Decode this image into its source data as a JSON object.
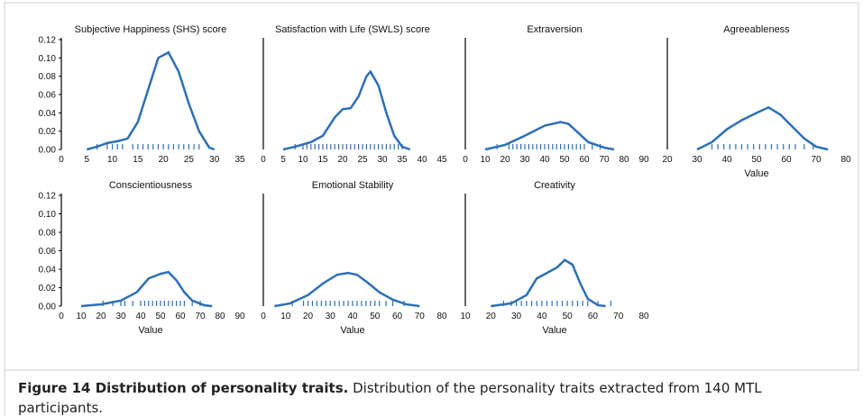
{
  "chart_data": [
    {
      "type": "line",
      "title": "Subjective Happiness (SHS) score",
      "color": "#2e6fb6",
      "x": [
        5,
        7,
        9,
        11,
        13,
        15,
        17,
        19,
        21,
        23,
        25,
        27,
        29,
        30
      ],
      "values": [
        0,
        0.003,
        0.007,
        0.009,
        0.012,
        0.03,
        0.065,
        0.1,
        0.106,
        0.085,
        0.05,
        0.02,
        0.002,
        0
      ],
      "rug": [
        7,
        9,
        10,
        11,
        12,
        14,
        15,
        16,
        17,
        18,
        19,
        20,
        21,
        22,
        23,
        24,
        25,
        26,
        27
      ],
      "xlim": [
        0,
        35
      ],
      "xticks": [
        0,
        5,
        10,
        15,
        20,
        25,
        30,
        35
      ],
      "ylim": [
        0,
        0.12
      ],
      "yticks": [
        {
          "value": 0,
          "label": "0.00"
        },
        {
          "value": 0.02,
          "label": "0.02"
        },
        {
          "value": 0.04,
          "label": "0.04"
        },
        {
          "value": 0.06,
          "label": "0.06"
        },
        {
          "value": 0.08,
          "label": "0.08"
        },
        {
          "value": 0.1,
          "label": "0.10"
        },
        {
          "value": 0.12,
          "label": "0.12"
        }
      ]
    },
    {
      "type": "line",
      "title": "Satisfaction with Life (SWLS) score",
      "color": "#2e6fb6",
      "x": [
        5,
        8,
        12,
        15,
        18,
        20,
        22,
        24,
        26,
        27,
        29,
        31,
        33,
        35,
        37
      ],
      "values": [
        0,
        0.003,
        0.008,
        0.015,
        0.035,
        0.044,
        0.045,
        0.058,
        0.08,
        0.085,
        0.07,
        0.04,
        0.015,
        0.003,
        0
      ],
      "rug": [
        8,
        10,
        11,
        12,
        13,
        14,
        15,
        16,
        17,
        18,
        19,
        20,
        21,
        22,
        23,
        24,
        25,
        26,
        27,
        28,
        29,
        30,
        31,
        32,
        33,
        34,
        35
      ],
      "xlim": [
        0,
        45
      ],
      "xticks": [
        0,
        5,
        10,
        15,
        20,
        25,
        30,
        35,
        40,
        45
      ],
      "ylim": [
        0,
        0.12
      ]
    },
    {
      "type": "line",
      "title": "Extraversion",
      "color": "#2e6fb6",
      "x": [
        10,
        20,
        30,
        40,
        48,
        52,
        57,
        62,
        70,
        75
      ],
      "values": [
        0,
        0.005,
        0.015,
        0.026,
        0.03,
        0.028,
        0.018,
        0.008,
        0.002,
        0
      ],
      "rug": [
        16,
        22,
        24,
        26,
        28,
        30,
        32,
        34,
        36,
        38,
        40,
        42,
        44,
        46,
        48,
        50,
        52,
        54,
        56,
        58,
        60,
        64,
        68
      ],
      "xlim": [
        0,
        90
      ],
      "xticks": [
        0,
        10,
        20,
        30,
        40,
        50,
        60,
        70,
        80,
        90
      ],
      "ylim": [
        0,
        0.12
      ]
    },
    {
      "type": "line",
      "title": "Agreeableness",
      "xlabel": "Value",
      "color": "#2e6fb6",
      "x": [
        30,
        35,
        40,
        45,
        50,
        54,
        58,
        62,
        66,
        70,
        74
      ],
      "values": [
        0,
        0.008,
        0.022,
        0.032,
        0.04,
        0.046,
        0.038,
        0.025,
        0.012,
        0.003,
        0
      ],
      "rug": [
        35,
        37,
        39,
        41,
        43,
        45,
        47,
        49,
        51,
        53,
        55,
        57,
        59,
        61,
        63,
        66,
        69
      ],
      "xlim": [
        20,
        80
      ],
      "xticks": [
        20,
        30,
        40,
        50,
        60,
        70,
        80
      ],
      "ylim": [
        0,
        0.12
      ]
    },
    {
      "type": "line",
      "title": "Conscientiousness",
      "xlabel": "Value",
      "color": "#2e6fb6",
      "x": [
        10,
        20,
        30,
        38,
        44,
        50,
        54,
        58,
        62,
        66,
        72,
        76
      ],
      "values": [
        0,
        0.002,
        0.006,
        0.015,
        0.03,
        0.035,
        0.037,
        0.028,
        0.015,
        0.006,
        0.001,
        0
      ],
      "rug": [
        21,
        26,
        30,
        32,
        36,
        40,
        42,
        44,
        46,
        48,
        50,
        52,
        54,
        56,
        58,
        60,
        62,
        66,
        70
      ],
      "xlim": [
        0,
        90
      ],
      "xticks": [
        0,
        10,
        20,
        30,
        40,
        50,
        60,
        70,
        80,
        90
      ],
      "ylim": [
        0,
        0.12
      ],
      "yticks": [
        {
          "value": 0,
          "label": "0.00"
        },
        {
          "value": 0.02,
          "label": "0.02"
        },
        {
          "value": 0.04,
          "label": "0.04"
        },
        {
          "value": 0.06,
          "label": "0.06"
        },
        {
          "value": 0.08,
          "label": "0.08"
        },
        {
          "value": 0.1,
          "label": "0.10"
        },
        {
          "value": 0.12,
          "label": "0.12"
        }
      ]
    },
    {
      "type": "line",
      "title": "Emotional Stability",
      "xlabel": "Value",
      "color": "#2e6fb6",
      "x": [
        5,
        12,
        20,
        27,
        33,
        38,
        42,
        47,
        52,
        58,
        64,
        70
      ],
      "values": [
        0,
        0.003,
        0.012,
        0.025,
        0.034,
        0.036,
        0.034,
        0.025,
        0.015,
        0.007,
        0.002,
        0
      ],
      "rug": [
        13,
        18,
        20,
        22,
        24,
        26,
        28,
        30,
        32,
        34,
        36,
        38,
        40,
        42,
        44,
        46,
        48,
        50,
        52,
        55,
        58,
        63
      ],
      "xlim": [
        0,
        80
      ],
      "xticks": [
        0,
        10,
        20,
        30,
        40,
        50,
        60,
        70,
        80
      ],
      "ylim": [
        0,
        0.12
      ]
    },
    {
      "type": "line",
      "title": "Creativity",
      "xlabel": "Value",
      "color": "#2e6fb6",
      "x": [
        20,
        28,
        34,
        38,
        42,
        46,
        49,
        52,
        55,
        58,
        62,
        65
      ],
      "values": [
        0,
        0.003,
        0.012,
        0.03,
        0.036,
        0.042,
        0.05,
        0.045,
        0.025,
        0.008,
        0.001,
        0
      ],
      "rug": [
        25,
        28,
        30,
        32,
        34,
        36,
        38,
        40,
        42,
        44,
        46,
        48,
        50,
        52,
        54,
        56,
        58,
        62,
        67
      ],
      "xlim": [
        10,
        80
      ],
      "xticks": [
        10,
        20,
        30,
        40,
        50,
        60,
        70,
        80
      ],
      "ylim": [
        0,
        0.12
      ]
    }
  ],
  "caption": {
    "label": "Figure 14  Distribution of personality traits.",
    "text": " Distribution of the personality traits extracted from 140 MTL participants."
  }
}
